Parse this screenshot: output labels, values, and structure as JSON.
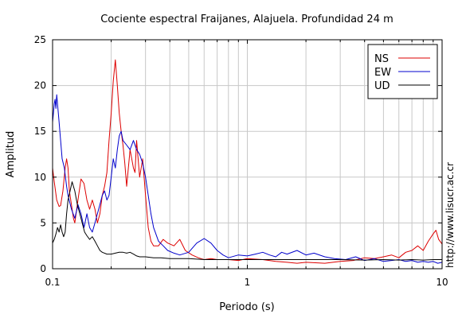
{
  "chart_data": {
    "type": "line",
    "title": "Cociente espectral Fraijanes, Alajuela. Profundidad 24 m",
    "xlabel": "Periodo (s)",
    "ylabel": "Amplitud",
    "xscale": "log",
    "xlim": [
      0.1,
      10
    ],
    "ylim": [
      0,
      25
    ],
    "xticks": [
      {
        "value": 0.1,
        "label": "0.1"
      },
      {
        "value": 1,
        "label": "1"
      },
      {
        "value": 10,
        "label": "10"
      }
    ],
    "yticks": [
      {
        "value": 0,
        "label": "0"
      },
      {
        "value": 5,
        "label": "5"
      },
      {
        "value": 10,
        "label": "10"
      },
      {
        "value": 15,
        "label": "15"
      },
      {
        "value": 20,
        "label": "20"
      },
      {
        "value": 25,
        "label": "25"
      }
    ],
    "grid": true,
    "legend_position": "top-right",
    "watermark": "http://www.lisucr.ac.cr",
    "series": [
      {
        "name": "NS",
        "color": "#dd0000",
        "points": [
          [
            0.1,
            11.0
          ],
          [
            0.102,
            9.5
          ],
          [
            0.105,
            7.5
          ],
          [
            0.108,
            6.8
          ],
          [
            0.11,
            6.9
          ],
          [
            0.113,
            8.5
          ],
          [
            0.116,
            11.0
          ],
          [
            0.118,
            12.0
          ],
          [
            0.12,
            11.0
          ],
          [
            0.122,
            8.5
          ],
          [
            0.125,
            7.0
          ],
          [
            0.128,
            5.5
          ],
          [
            0.13,
            5.0
          ],
          [
            0.133,
            6.5
          ],
          [
            0.136,
            8.0
          ],
          [
            0.14,
            9.8
          ],
          [
            0.145,
            9.3
          ],
          [
            0.15,
            7.5
          ],
          [
            0.155,
            6.5
          ],
          [
            0.16,
            7.5
          ],
          [
            0.165,
            6.5
          ],
          [
            0.17,
            5.0
          ],
          [
            0.175,
            6.0
          ],
          [
            0.18,
            8.0
          ],
          [
            0.185,
            9.0
          ],
          [
            0.19,
            10.5
          ],
          [
            0.195,
            14.0
          ],
          [
            0.2,
            17.0
          ],
          [
            0.205,
            20.5
          ],
          [
            0.21,
            22.8
          ],
          [
            0.215,
            20.0
          ],
          [
            0.22,
            17.0
          ],
          [
            0.225,
            15.0
          ],
          [
            0.23,
            13.5
          ],
          [
            0.235,
            11.5
          ],
          [
            0.24,
            9.0
          ],
          [
            0.25,
            13.0
          ],
          [
            0.26,
            11.0
          ],
          [
            0.265,
            10.5
          ],
          [
            0.27,
            14.0
          ],
          [
            0.275,
            12.0
          ],
          [
            0.28,
            10.0
          ],
          [
            0.29,
            12.0
          ],
          [
            0.3,
            8.0
          ],
          [
            0.31,
            4.5
          ],
          [
            0.32,
            3.0
          ],
          [
            0.33,
            2.5
          ],
          [
            0.35,
            2.5
          ],
          [
            0.37,
            3.2
          ],
          [
            0.39,
            2.8
          ],
          [
            0.42,
            2.5
          ],
          [
            0.45,
            3.2
          ],
          [
            0.48,
            2.0
          ],
          [
            0.52,
            1.5
          ],
          [
            0.56,
            1.2
          ],
          [
            0.6,
            1.0
          ],
          [
            0.65,
            1.1
          ],
          [
            0.7,
            1.0
          ],
          [
            0.8,
            1.0
          ],
          [
            0.9,
            0.9
          ],
          [
            1.0,
            1.1
          ],
          [
            1.2,
            1.0
          ],
          [
            1.4,
            0.8
          ],
          [
            1.6,
            0.7
          ],
          [
            1.8,
            0.6
          ],
          [
            2.0,
            0.7
          ],
          [
            2.5,
            0.6
          ],
          [
            3.0,
            0.8
          ],
          [
            3.5,
            0.9
          ],
          [
            4.0,
            1.2
          ],
          [
            4.5,
            1.1
          ],
          [
            5.0,
            1.3
          ],
          [
            5.5,
            1.5
          ],
          [
            6.0,
            1.2
          ],
          [
            6.5,
            1.8
          ],
          [
            7.0,
            2.0
          ],
          [
            7.5,
            2.5
          ],
          [
            8.0,
            2.0
          ],
          [
            8.5,
            3.0
          ],
          [
            9.0,
            3.8
          ],
          [
            9.3,
            4.2
          ],
          [
            9.6,
            3.2
          ],
          [
            10.0,
            2.7
          ]
        ]
      },
      {
        "name": "EW",
        "color": "#0000cc",
        "points": [
          [
            0.1,
            16.0
          ],
          [
            0.101,
            17.0
          ],
          [
            0.102,
            18.0
          ],
          [
            0.103,
            18.5
          ],
          [
            0.104,
            17.5
          ],
          [
            0.105,
            19.0
          ],
          [
            0.106,
            18.0
          ],
          [
            0.108,
            16.0
          ],
          [
            0.11,
            14.0
          ],
          [
            0.112,
            12.0
          ],
          [
            0.115,
            11.0
          ],
          [
            0.118,
            9.0
          ],
          [
            0.12,
            8.0
          ],
          [
            0.125,
            6.5
          ],
          [
            0.13,
            5.5
          ],
          [
            0.135,
            7.0
          ],
          [
            0.14,
            6.0
          ],
          [
            0.145,
            4.5
          ],
          [
            0.15,
            6.0
          ],
          [
            0.155,
            4.5
          ],
          [
            0.16,
            4.0
          ],
          [
            0.165,
            5.0
          ],
          [
            0.17,
            6.0
          ],
          [
            0.175,
            7.0
          ],
          [
            0.18,
            8.0
          ],
          [
            0.185,
            8.5
          ],
          [
            0.19,
            7.5
          ],
          [
            0.195,
            8.0
          ],
          [
            0.2,
            10.0
          ],
          [
            0.205,
            12.0
          ],
          [
            0.21,
            11.0
          ],
          [
            0.215,
            13.0
          ],
          [
            0.22,
            14.5
          ],
          [
            0.225,
            15.0
          ],
          [
            0.23,
            14.0
          ],
          [
            0.24,
            13.5
          ],
          [
            0.25,
            13.0
          ],
          [
            0.26,
            14.0
          ],
          [
            0.27,
            13.0
          ],
          [
            0.28,
            12.5
          ],
          [
            0.29,
            11.5
          ],
          [
            0.3,
            10.0
          ],
          [
            0.31,
            8.0
          ],
          [
            0.32,
            6.0
          ],
          [
            0.33,
            4.5
          ],
          [
            0.35,
            3.0
          ],
          [
            0.37,
            2.5
          ],
          [
            0.39,
            2.0
          ],
          [
            0.42,
            1.7
          ],
          [
            0.45,
            1.5
          ],
          [
            0.5,
            1.8
          ],
          [
            0.55,
            2.8
          ],
          [
            0.6,
            3.3
          ],
          [
            0.65,
            2.8
          ],
          [
            0.7,
            2.0
          ],
          [
            0.75,
            1.5
          ],
          [
            0.8,
            1.2
          ],
          [
            0.9,
            1.5
          ],
          [
            1.0,
            1.4
          ],
          [
            1.1,
            1.6
          ],
          [
            1.2,
            1.8
          ],
          [
            1.3,
            1.5
          ],
          [
            1.4,
            1.3
          ],
          [
            1.5,
            1.8
          ],
          [
            1.6,
            1.6
          ],
          [
            1.8,
            2.0
          ],
          [
            2.0,
            1.5
          ],
          [
            2.2,
            1.7
          ],
          [
            2.5,
            1.3
          ],
          [
            2.8,
            1.1
          ],
          [
            3.2,
            1.0
          ],
          [
            3.6,
            1.3
          ],
          [
            4.0,
            0.9
          ],
          [
            4.5,
            1.1
          ],
          [
            5.0,
            0.8
          ],
          [
            5.5,
            0.9
          ],
          [
            6.0,
            1.0
          ],
          [
            6.5,
            0.8
          ],
          [
            7.0,
            0.9
          ],
          [
            7.5,
            0.7
          ],
          [
            8.0,
            0.8
          ],
          [
            8.5,
            0.7
          ],
          [
            9.0,
            0.8
          ],
          [
            9.5,
            0.6
          ],
          [
            10.0,
            0.7
          ]
        ]
      },
      {
        "name": "UD",
        "color": "#000000",
        "points": [
          [
            0.1,
            2.8
          ],
          [
            0.102,
            3.2
          ],
          [
            0.104,
            3.8
          ],
          [
            0.106,
            4.5
          ],
          [
            0.108,
            4.0
          ],
          [
            0.11,
            4.8
          ],
          [
            0.112,
            4.0
          ],
          [
            0.114,
            3.5
          ],
          [
            0.116,
            4.0
          ],
          [
            0.118,
            6.0
          ],
          [
            0.12,
            7.5
          ],
          [
            0.123,
            8.5
          ],
          [
            0.126,
            9.5
          ],
          [
            0.13,
            8.5
          ],
          [
            0.134,
            7.0
          ],
          [
            0.138,
            6.0
          ],
          [
            0.142,
            5.0
          ],
          [
            0.146,
            4.0
          ],
          [
            0.15,
            3.6
          ],
          [
            0.155,
            3.2
          ],
          [
            0.16,
            3.5
          ],
          [
            0.165,
            3.0
          ],
          [
            0.17,
            2.5
          ],
          [
            0.175,
            2.0
          ],
          [
            0.18,
            1.8
          ],
          [
            0.19,
            1.6
          ],
          [
            0.2,
            1.6
          ],
          [
            0.21,
            1.7
          ],
          [
            0.22,
            1.8
          ],
          [
            0.23,
            1.8
          ],
          [
            0.24,
            1.7
          ],
          [
            0.25,
            1.8
          ],
          [
            0.26,
            1.6
          ],
          [
            0.27,
            1.4
          ],
          [
            0.28,
            1.3
          ],
          [
            0.3,
            1.3
          ],
          [
            0.33,
            1.2
          ],
          [
            0.36,
            1.2
          ],
          [
            0.4,
            1.1
          ],
          [
            0.45,
            1.1
          ],
          [
            0.5,
            1.1
          ],
          [
            0.6,
            1.0
          ],
          [
            0.7,
            1.0
          ],
          [
            0.8,
            1.0
          ],
          [
            0.9,
            1.0
          ],
          [
            1.0,
            1.0
          ],
          [
            1.5,
            1.0
          ],
          [
            2.0,
            1.0
          ],
          [
            3.0,
            1.0
          ],
          [
            4.0,
            0.95
          ],
          [
            5.0,
            1.0
          ],
          [
            6.0,
            0.95
          ],
          [
            7.0,
            1.0
          ],
          [
            8.0,
            0.95
          ],
          [
            9.0,
            1.0
          ],
          [
            10.0,
            1.0
          ]
        ]
      }
    ]
  }
}
